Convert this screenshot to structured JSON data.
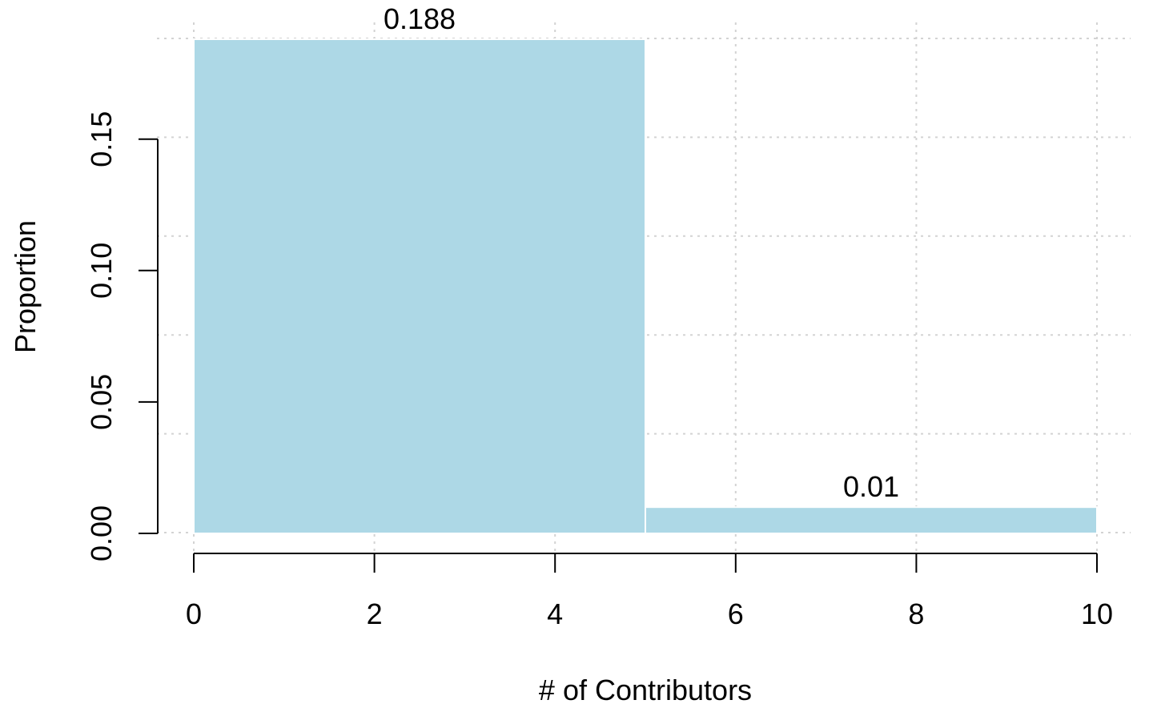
{
  "chart_data": {
    "type": "bar",
    "bins": [
      {
        "x0": 0,
        "x1": 5,
        "value": 0.188,
        "label": "0.188"
      },
      {
        "x0": 5,
        "x1": 10,
        "value": 0.01,
        "label": "0.01"
      }
    ],
    "xlabel": "# of Contributors",
    "ylabel": "Proportion",
    "xlim": [
      0,
      10
    ],
    "ylim": [
      0,
      0.188
    ],
    "x_ticks": [
      "0",
      "2",
      "4",
      "6",
      "8",
      "10"
    ],
    "y_ticks": [
      "0.00",
      "0.05",
      "0.10",
      "0.15"
    ],
    "grid": true,
    "legend": "none",
    "colors": {
      "bar": "#add8e6",
      "bar_border": "#ffffff",
      "grid": "#d3d3d3",
      "axis": "#000000"
    }
  }
}
